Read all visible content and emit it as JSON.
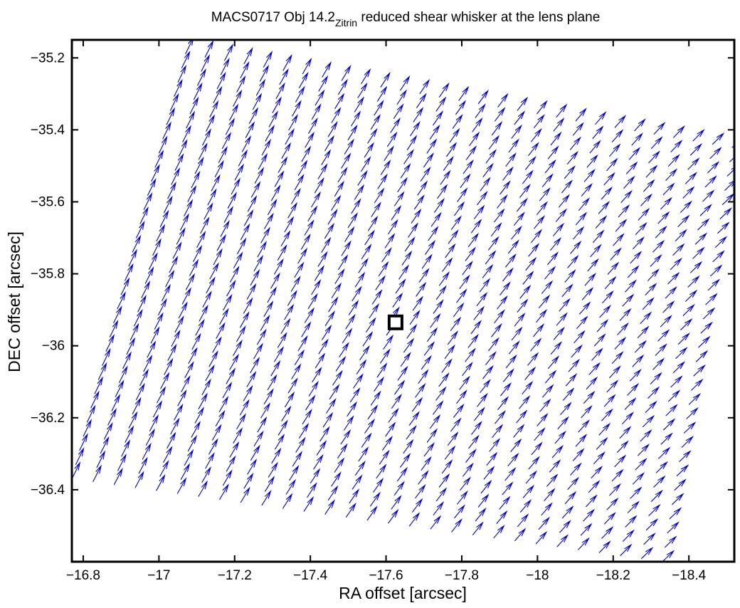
{
  "chart_data": {
    "type": "quiver",
    "title": {
      "main": "MACS0717 Obj 14.2",
      "subscript": "Zitrin",
      "rest": " reduced shear whisker at the lens plane"
    },
    "xlabel": "RA offset [arcsec]",
    "ylabel": "DEC offset [arcsec]",
    "xlim": [
      -16.77,
      -18.52
    ],
    "ylim": [
      -36.6,
      -35.15
    ],
    "x_reversed": true,
    "xticks": [
      -16.8,
      -17,
      -17.2,
      -17.4,
      -17.6,
      -17.8,
      -18,
      -18.2,
      -18.4
    ],
    "xtick_labels": [
      "−16.8",
      "−17",
      "−17.2",
      "−17.4",
      "−17.6",
      "−17.8",
      "−18",
      "−18.2",
      "−18.4"
    ],
    "yticks": [
      -35.2,
      -35.4,
      -35.6,
      -35.8,
      -36,
      -36.2,
      -36.4
    ],
    "ytick_labels": [
      "−35.2",
      "−35.4",
      "−35.6",
      "−35.8",
      "−36",
      "−36.2",
      "−36.4"
    ],
    "grid": false,
    "marker": {
      "shape": "square",
      "x": -17.625,
      "y": -35.935,
      "color": "#000000"
    },
    "vectors": {
      "color": "#0000cc",
      "columns": 29,
      "column_spacing_arcsec": 0.0575,
      "row_spacing_arcsec": 0.04,
      "region_corners": [
        {
          "x": -16.77,
          "y": -36.37
        },
        {
          "x": -17.08,
          "y": -35.15
        },
        {
          "x": -18.52,
          "y": -35.41
        },
        {
          "x": -18.33,
          "y": -36.6
        }
      ],
      "dx_arcsec": -0.021,
      "dy_arcsec": 0.045,
      "dx_change_per_column": -0.0003,
      "dy_change_per_column": -0.00055
    }
  }
}
